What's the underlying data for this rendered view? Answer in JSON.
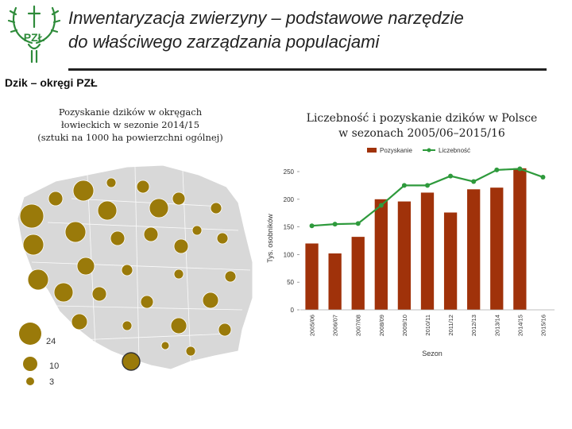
{
  "header": {
    "title_line1": "Inwentaryzacja zwierzyny – podstawowe narzędzie",
    "title_line2": "do właściwego zarządzania populacjami",
    "logo_text": "PZŁ",
    "subtitle": "Dzik – okręgi PZŁ"
  },
  "map": {
    "caption_line1": "Pozyskanie dzików w okręgach",
    "caption_line2": "łowieckich w sezonie 2014/15",
    "caption_line3": "(sztuki na 1000 ha powierzchni ogólnej)",
    "legend": [
      {
        "label": "24",
        "value": 24
      },
      {
        "label": "10",
        "value": 10
      },
      {
        "label": "3",
        "value": 3
      }
    ],
    "bubble_color": "#9a7a0a",
    "region_fill": "#d8d8d8"
  },
  "chart_data": {
    "type": "bar",
    "title_line1": "Liczebność i pozyskanie dzików w Polsce",
    "title_line2": "w sezonach 2005/06–2015/16",
    "xlabel": "Sezon",
    "ylabel": "Tys. osobników",
    "ylim": [
      0,
      250
    ],
    "yticks": [
      0,
      50,
      100,
      150,
      200,
      250
    ],
    "ytick_labels": [
      "0",
      "50",
      "100",
      "150",
      "200",
      "250"
    ],
    "categories": [
      "2005/06",
      "2006/07",
      "2007/08",
      "2008/09",
      "2009/10",
      "2010/11",
      "2011/12",
      "2012/13",
      "2013/14",
      "2014/15",
      "2015/16"
    ],
    "series": [
      {
        "name": "Pozyskanie",
        "kind": "bar",
        "color": "#a0320a",
        "values": [
          120,
          102,
          132,
          200,
          196,
          212,
          176,
          218,
          221,
          256,
          null
        ]
      },
      {
        "name": "Liczebność",
        "kind": "line",
        "color": "#2e9a3c",
        "values": [
          152,
          155,
          156,
          189,
          225,
          225,
          242,
          232,
          253,
          255,
          240
        ]
      }
    ],
    "legend_position": "top"
  }
}
